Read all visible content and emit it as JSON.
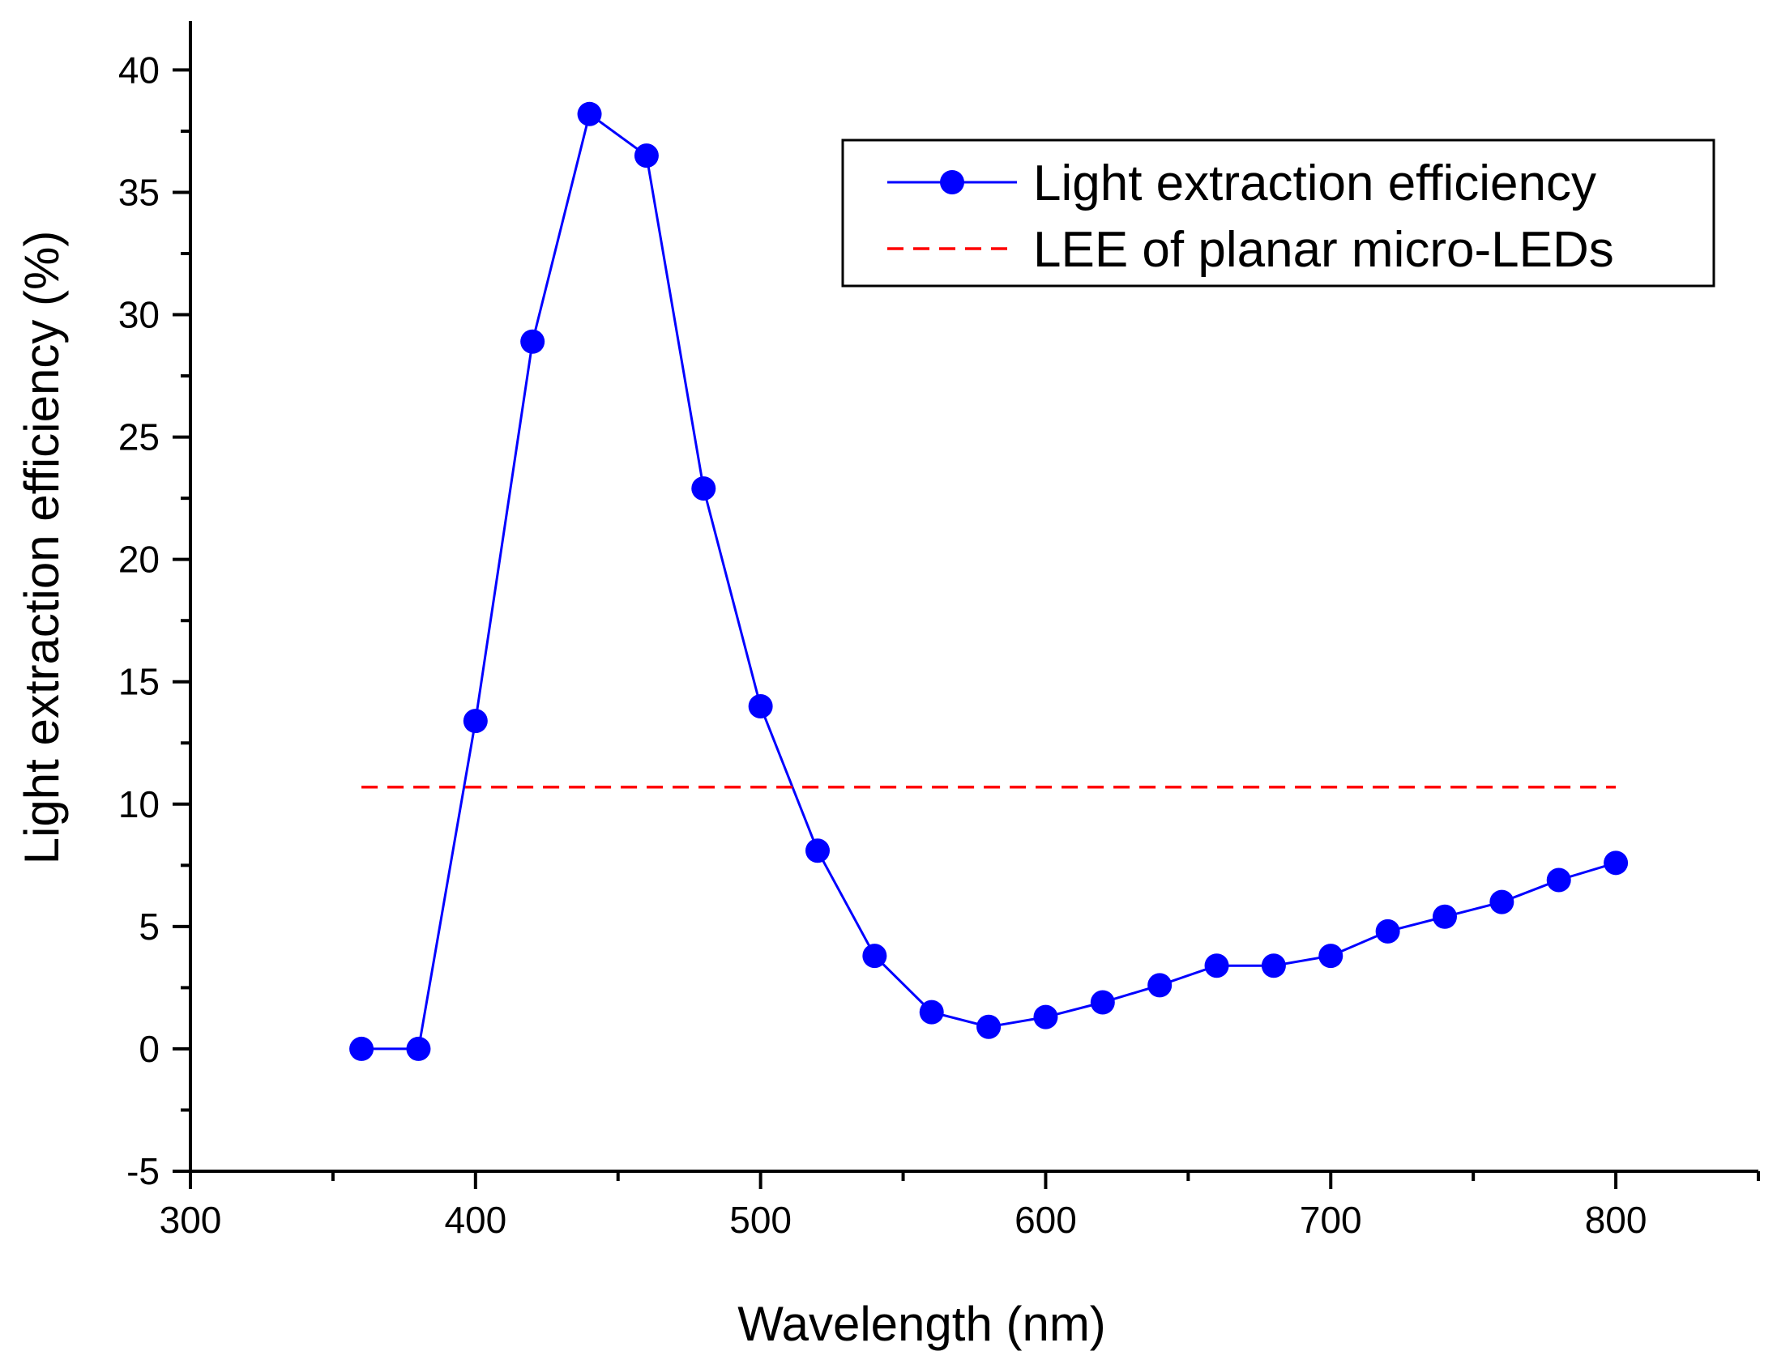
{
  "chart_data": {
    "type": "line",
    "title": "",
    "xlabel": "Wavelength (nm)",
    "ylabel": "Light extraction efficiency (%)",
    "xlim": [
      300,
      850
    ],
    "ylim": [
      -5,
      42
    ],
    "x_ticks": [
      300,
      400,
      500,
      600,
      700,
      800
    ],
    "x_tick_labels": [
      "300",
      "400",
      "500",
      "600",
      "700",
      "800"
    ],
    "x_minor_ticks": [
      350,
      450,
      550,
      650,
      750,
      850
    ],
    "y_ticks": [
      -5,
      0,
      5,
      10,
      15,
      20,
      25,
      30,
      35,
      40
    ],
    "y_tick_labels": [
      "-5",
      "0",
      "5",
      "10",
      "15",
      "20",
      "25",
      "30",
      "35",
      "40"
    ],
    "y_minor_ticks": [
      -2.5,
      2.5,
      7.5,
      12.5,
      17.5,
      22.5,
      27.5,
      32.5,
      37.5
    ],
    "grid": false,
    "legend_position": "top-right",
    "series": [
      {
        "name": "Light extraction efficiency",
        "color": "#0000ff",
        "style": "line-marker",
        "x": [
          360,
          380,
          400,
          420,
          440,
          460,
          480,
          500,
          520,
          540,
          560,
          580,
          600,
          620,
          640,
          660,
          680,
          700,
          720,
          740,
          760,
          780,
          800
        ],
        "values": [
          0,
          0,
          13.4,
          28.9,
          38.2,
          36.5,
          22.9,
          14.0,
          8.1,
          3.8,
          1.5,
          0.9,
          1.3,
          1.9,
          2.6,
          3.4,
          3.4,
          3.8,
          4.8,
          5.4,
          6.0,
          6.9,
          7.6
        ]
      },
      {
        "name": "LEE of planar micro-LEDs",
        "color": "#ff0000",
        "style": "dashed",
        "x": [
          360,
          800
        ],
        "values": [
          10.7,
          10.7
        ]
      }
    ]
  }
}
